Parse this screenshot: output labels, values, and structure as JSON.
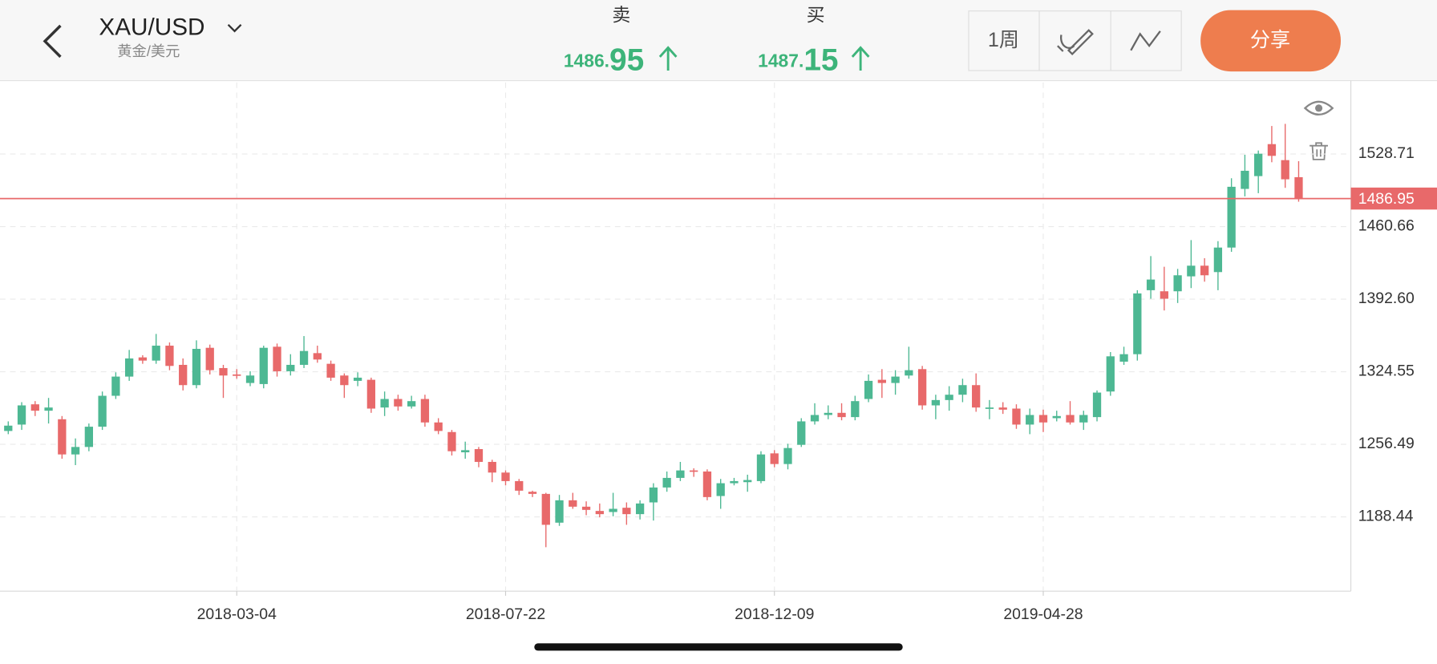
{
  "header": {
    "title": "XAU/USD",
    "subtitle": "黄金/美元",
    "sell": {
      "label": "卖",
      "price_int": "1486.",
      "price_frac": "95"
    },
    "buy": {
      "label": "买",
      "price_int": "1487.",
      "price_frac": "15"
    },
    "period": "1周",
    "share": "分享"
  },
  "chart_data": {
    "type": "candlestick",
    "categories": [
      null,
      null,
      null,
      null,
      null,
      null,
      null,
      null,
      null,
      null,
      null,
      null,
      null,
      null,
      null,
      null,
      null,
      "2018-03-04",
      null,
      null,
      null,
      null,
      null,
      null,
      null,
      null,
      null,
      null,
      null,
      null,
      null,
      null,
      null,
      null,
      null,
      null,
      null,
      "2018-07-22",
      null,
      null,
      null,
      null,
      null,
      null,
      null,
      null,
      null,
      null,
      null,
      null,
      null,
      null,
      null,
      null,
      null,
      null,
      null,
      "2018-12-09",
      null,
      null,
      null,
      null,
      null,
      null,
      null,
      null,
      null,
      null,
      null,
      null,
      null,
      null,
      null,
      null,
      null,
      null,
      null,
      "2019-04-28",
      null,
      null,
      null,
      null,
      null,
      null,
      null,
      null,
      null,
      null,
      null,
      null,
      null,
      null,
      null,
      null,
      null,
      null,
      null
    ],
    "open": [
      1269,
      1275,
      1294,
      1288,
      1280,
      1247,
      1254,
      1273,
      1302,
      1320,
      1338,
      1335,
      1349,
      1331,
      1312,
      1347,
      1328,
      1322,
      1314,
      1313,
      1348,
      1325,
      1331,
      1342,
      1332,
      1321,
      1316,
      1317,
      1291,
      1299,
      1292,
      1299,
      1277,
      1268,
      1249,
      1252,
      1240,
      1230,
      1222,
      1212,
      1210,
      1183,
      1204,
      1198,
      1194,
      1193,
      1197,
      1191,
      1202,
      1216,
      1225,
      1232,
      1231,
      1208,
      1220,
      1221,
      1222,
      1248,
      1238,
      1256,
      1278,
      1284,
      1286,
      1282,
      1299,
      1317,
      1314,
      1321,
      1327,
      1293,
      1298,
      1303,
      1312,
      1290,
      1291,
      1290,
      1275,
      1284,
      1281,
      1284,
      1277,
      1282,
      1306,
      1334,
      1341,
      1401,
      1400,
      1400,
      1414,
      1424,
      1418,
      1441,
      1496,
      1508,
      1538,
      1523,
      1507
    ],
    "high": [
      1278,
      1296,
      1297,
      1300,
      1283,
      1262,
      1276,
      1306,
      1324,
      1345,
      1340,
      1360,
      1352,
      1337,
      1354,
      1350,
      1331,
      1327,
      1325,
      1349,
      1351,
      1341,
      1358,
      1349,
      1335,
      1323,
      1324,
      1319,
      1306,
      1303,
      1302,
      1303,
      1281,
      1270,
      1259,
      1254,
      1242,
      1232,
      1224,
      1213,
      1211,
      1209,
      1211,
      1203,
      1201,
      1211,
      1202,
      1204,
      1220,
      1231,
      1240,
      1234,
      1233,
      1224,
      1225,
      1228,
      1250,
      1251,
      1257,
      1281,
      1295,
      1293,
      1295,
      1302,
      1322,
      1327,
      1326,
      1348,
      1330,
      1303,
      1311,
      1318,
      1323,
      1298,
      1296,
      1294,
      1290,
      1289,
      1288,
      1297,
      1288,
      1307,
      1343,
      1348,
      1401,
      1433,
      1423,
      1421,
      1448,
      1431,
      1447,
      1506,
      1528,
      1532,
      1555,
      1557,
      1522
    ],
    "low": [
      1266,
      1270,
      1283,
      1276,
      1243,
      1237,
      1250,
      1270,
      1299,
      1316,
      1332,
      1332,
      1326,
      1307,
      1309,
      1322,
      1300,
      1318,
      1311,
      1309,
      1320,
      1321,
      1328,
      1333,
      1316,
      1300,
      1311,
      1286,
      1283,
      1288,
      1290,
      1273,
      1266,
      1246,
      1243,
      1235,
      1221,
      1218,
      1209,
      1207,
      1160,
      1180,
      1196,
      1190,
      1188,
      1189,
      1181,
      1186,
      1185,
      1212,
      1222,
      1226,
      1204,
      1196,
      1218,
      1212,
      1220,
      1235,
      1233,
      1254,
      1275,
      1280,
      1279,
      1279,
      1296,
      1300,
      1303,
      1318,
      1289,
      1280,
      1288,
      1296,
      1287,
      1280,
      1285,
      1271,
      1266,
      1268,
      1278,
      1275,
      1270,
      1278,
      1302,
      1331,
      1335,
      1393,
      1382,
      1389,
      1403,
      1409,
      1401,
      1437,
      1489,
      1492,
      1521,
      1497,
      1484
    ],
    "close": [
      1274,
      1293,
      1288,
      1291,
      1247,
      1254,
      1273,
      1302,
      1320,
      1337,
      1335,
      1349,
      1330,
      1312,
      1346,
      1326,
      1321,
      1321,
      1321,
      1347,
      1325,
      1331,
      1344,
      1336,
      1319,
      1312,
      1319,
      1290,
      1299,
      1292,
      1297,
      1277,
      1269,
      1250,
      1251,
      1240,
      1230,
      1222,
      1213,
      1210,
      1181,
      1204,
      1198,
      1195,
      1191,
      1196,
      1191,
      1201,
      1216,
      1225,
      1232,
      1231,
      1207,
      1220,
      1222,
      1223,
      1247,
      1238,
      1253,
      1278,
      1284,
      1286,
      1282,
      1297,
      1316,
      1314,
      1320,
      1326,
      1293,
      1298,
      1303,
      1312,
      1291,
      1291,
      1289,
      1275,
      1284,
      1277,
      1283,
      1277,
      1284,
      1305,
      1339,
      1341,
      1398,
      1411,
      1393,
      1415,
      1424,
      1415,
      1441,
      1498,
      1513,
      1529,
      1527,
      1505,
      1487
    ],
    "up_color": "#4db893",
    "down_color": "#e8696a",
    "ylim": [
      1118.8,
      1595.8
    ],
    "yticks": [
      1188.44,
      1256.49,
      1324.55,
      {
        "value": 1392.6,
        "label": "1392.60"
      },
      1460.66,
      1528.71
    ],
    "grid": true,
    "current_price": 1486.95,
    "current_price_color": "#e8696a"
  }
}
